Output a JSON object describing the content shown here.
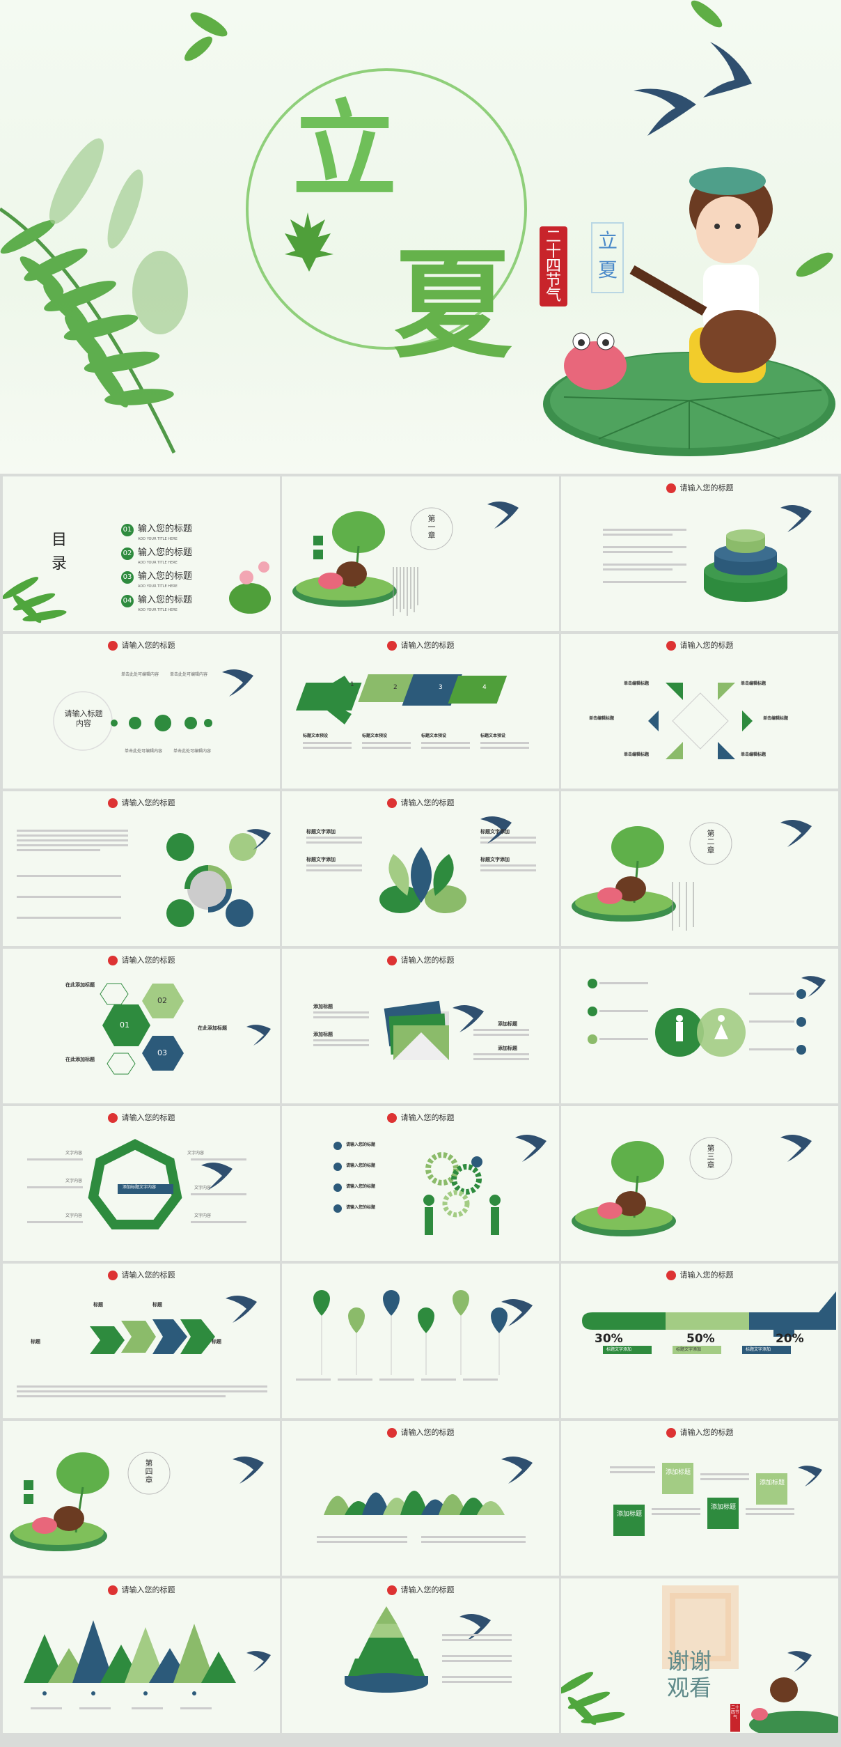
{
  "cover": {
    "char_li": "立",
    "char_xia": "夏",
    "badge": "二十四节气",
    "small_title": "立夏"
  },
  "toc": {
    "title_mu": "目",
    "title_lu": "录",
    "items": [
      {
        "num": "01",
        "label": "输入您的标题",
        "sub": "ADD YOUR TITLE HERE"
      },
      {
        "num": "02",
        "label": "输入您的标题",
        "sub": "ADD YOUR TITLE HERE"
      },
      {
        "num": "03",
        "label": "输入您的标题",
        "sub": "ADD YOUR TITLE HERE"
      },
      {
        "num": "04",
        "label": "输入您的标题",
        "sub": "ADD YOUR TITLE HERE"
      }
    ]
  },
  "chapters": {
    "one": "第一章",
    "two": "第二章",
    "three": "第三章",
    "four": "第四章"
  },
  "slide_title": "请输入您的标题",
  "slide5": {
    "circle_label": "请输入标题内容",
    "top_a": "单击此处可编辑内容",
    "top_b": "单击此处可编辑内容",
    "bot_a": "单击此处可编辑内容",
    "bot_b": "单击此处可编辑内容"
  },
  "slide6": {
    "steps": [
      "1",
      "2",
      "3",
      "4"
    ],
    "captions": [
      "标题文本预设",
      "标题文本预设",
      "标题文本预设",
      "标题文本预设"
    ],
    "ribbon": [
      "标题文本预设",
      "标题文本预设",
      "标题文本预设",
      "标题文本预设"
    ]
  },
  "slide7": {
    "labels": [
      "单击编辑标题",
      "单击编辑标题",
      "单击编辑标题",
      "单击编辑标题",
      "单击编辑标题",
      "单击编辑标题"
    ]
  },
  "slide9": {
    "heads": [
      "标题文字添加",
      "标题文字添加",
      "标题文字添加",
      "标题文字添加"
    ]
  },
  "slide11": {
    "heads": [
      "在此添加标题",
      "在此添加标题",
      "在此添加标题"
    ],
    "nums": [
      "01",
      "02",
      "03"
    ]
  },
  "slide12": {
    "heads": [
      "添加标题",
      "添加标题",
      "添加标题",
      "添加标题"
    ]
  },
  "slide14": {
    "center": "添加标题文字内容",
    "labels": [
      "文字内容",
      "文字内容",
      "文字内容",
      "文字内容",
      "文字内容",
      "文字内容"
    ]
  },
  "slide15": {
    "items": [
      "请输入您的标题",
      "请输入您的标题",
      "请输入您的标题",
      "请输入您的标题"
    ]
  },
  "slide17": {
    "heads": [
      "标题",
      "标题",
      "标题",
      "标题"
    ]
  },
  "slide19": {
    "percents": [
      "30%",
      "50%",
      "20%"
    ],
    "tags": [
      "标题文字添加",
      "标题文字添加",
      "标题文字添加"
    ]
  },
  "slide22": {
    "tiles": [
      "添加标题",
      "添加标题",
      "添加标题",
      "添加标题"
    ]
  },
  "ending": {
    "line1": "谢谢",
    "line2": "观看",
    "badge": "二十四节气"
  }
}
